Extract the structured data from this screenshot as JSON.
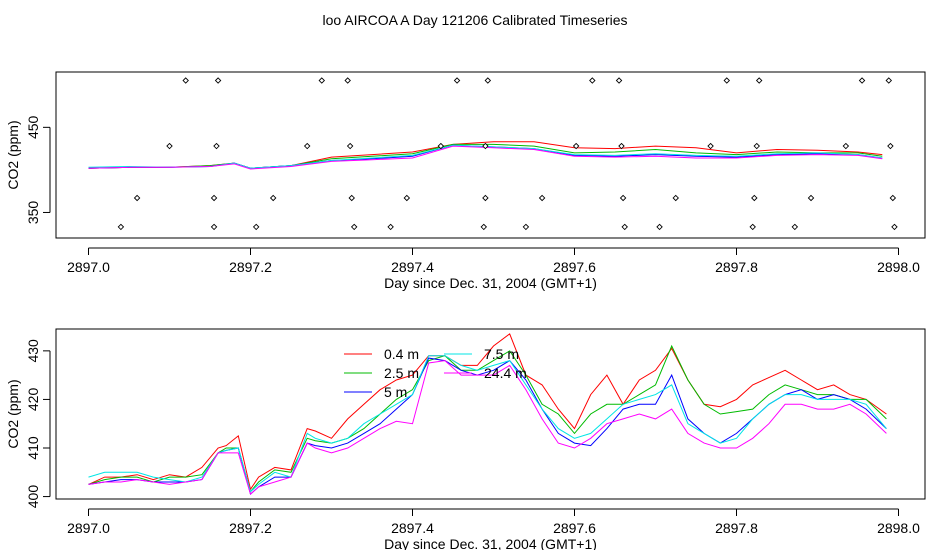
{
  "page": {
    "title": "loo AIRCOA A  Day 121206  Calibrated Timeseries"
  },
  "colors": {
    "s1": "#ff0000",
    "s2": "#00bb00",
    "s3": "#0000ff",
    "s4": "#00e5e5",
    "s5": "#ff00ff"
  },
  "chart_data": [
    {
      "type": "scatter",
      "xlabel": "Day since Dec. 31, 2004 (GMT+1)",
      "ylabel": "CO2 (ppm)",
      "xlim": [
        2897.0,
        2898.0
      ],
      "ylim": [
        320,
        515
      ],
      "x_ticks": [
        2897.0,
        2897.2,
        2897.4,
        2897.6,
        2897.8,
        2898.0
      ],
      "x_tick_labels": [
        "2897.0",
        "2897.2",
        "2897.4",
        "2897.6",
        "2897.8",
        "2898.0"
      ],
      "y_ticks": [
        350,
        450
      ],
      "y_tick_labels": [
        "350",
        "450"
      ],
      "marker_points": [
        {
          "x": 2897.04,
          "y": 333
        },
        {
          "x": 2897.06,
          "y": 367
        },
        {
          "x": 2897.1,
          "y": 428
        },
        {
          "x": 2897.12,
          "y": 505
        },
        {
          "x": 2897.155,
          "y": 333
        },
        {
          "x": 2897.155,
          "y": 367
        },
        {
          "x": 2897.158,
          "y": 428
        },
        {
          "x": 2897.16,
          "y": 505
        },
        {
          "x": 2897.207,
          "y": 333
        },
        {
          "x": 2897.228,
          "y": 367
        },
        {
          "x": 2897.27,
          "y": 428
        },
        {
          "x": 2897.288,
          "y": 505
        },
        {
          "x": 2897.32,
          "y": 505
        },
        {
          "x": 2897.323,
          "y": 428
        },
        {
          "x": 2897.325,
          "y": 367
        },
        {
          "x": 2897.328,
          "y": 333
        },
        {
          "x": 2897.373,
          "y": 333
        },
        {
          "x": 2897.393,
          "y": 367
        },
        {
          "x": 2897.435,
          "y": 428
        },
        {
          "x": 2897.455,
          "y": 505
        },
        {
          "x": 2897.488,
          "y": 333
        },
        {
          "x": 2897.49,
          "y": 367
        },
        {
          "x": 2897.49,
          "y": 428
        },
        {
          "x": 2897.493,
          "y": 505
        },
        {
          "x": 2897.54,
          "y": 333
        },
        {
          "x": 2897.56,
          "y": 367
        },
        {
          "x": 2897.602,
          "y": 428
        },
        {
          "x": 2897.622,
          "y": 505
        },
        {
          "x": 2897.655,
          "y": 505
        },
        {
          "x": 2897.658,
          "y": 428
        },
        {
          "x": 2897.66,
          "y": 367
        },
        {
          "x": 2897.662,
          "y": 333
        },
        {
          "x": 2897.705,
          "y": 333
        },
        {
          "x": 2897.725,
          "y": 367
        },
        {
          "x": 2897.768,
          "y": 428
        },
        {
          "x": 2897.788,
          "y": 505
        },
        {
          "x": 2897.82,
          "y": 333
        },
        {
          "x": 2897.822,
          "y": 367
        },
        {
          "x": 2897.825,
          "y": 428
        },
        {
          "x": 2897.828,
          "y": 505
        },
        {
          "x": 2897.872,
          "y": 333
        },
        {
          "x": 2897.892,
          "y": 367
        },
        {
          "x": 2897.935,
          "y": 428
        },
        {
          "x": 2897.955,
          "y": 505
        },
        {
          "x": 2897.988,
          "y": 505
        },
        {
          "x": 2897.99,
          "y": 428
        },
        {
          "x": 2897.993,
          "y": 367
        },
        {
          "x": 2897.995,
          "y": 333
        }
      ],
      "x": [
        2897.0,
        2897.05,
        2897.1,
        2897.15,
        2897.18,
        2897.2,
        2897.25,
        2897.3,
        2897.35,
        2897.4,
        2897.45,
        2897.5,
        2897.55,
        2897.6,
        2897.65,
        2897.7,
        2897.75,
        2897.8,
        2897.85,
        2897.9,
        2897.95,
        2897.98
      ],
      "series": [
        {
          "values": [
            402,
            403,
            403,
            405,
            408,
            402,
            405,
            415,
            418,
            421,
            430,
            433,
            433,
            426,
            425,
            428,
            426,
            420,
            424,
            423,
            421,
            418
          ]
        },
        {
          "values": [
            402,
            403,
            403,
            405,
            408,
            402,
            405,
            413,
            416,
            419,
            430,
            430,
            428,
            420,
            421,
            424,
            420,
            418,
            421,
            420,
            420,
            416
          ]
        },
        {
          "values": [
            402,
            403,
            403,
            404,
            408,
            402,
            405,
            411,
            413,
            416,
            429,
            427,
            425,
            417,
            416,
            418,
            416,
            415,
            418,
            419,
            418,
            414
          ]
        },
        {
          "values": [
            403,
            404,
            403,
            404,
            408,
            402,
            405,
            411,
            414,
            417,
            429,
            427,
            425,
            418,
            417,
            419,
            417,
            416,
            419,
            420,
            418,
            414
          ]
        },
        {
          "values": [
            402,
            403,
            403,
            404,
            407,
            401,
            404,
            410,
            412,
            414,
            428,
            426,
            424,
            416,
            415,
            416,
            414,
            414,
            417,
            418,
            417,
            413
          ]
        }
      ]
    },
    {
      "type": "line",
      "xlabel": "Day since Dec. 31, 2004 (GMT+1)",
      "ylabel": "CO2 (ppm)",
      "xlim": [
        2897.0,
        2898.0
      ],
      "ylim": [
        399.5,
        434.5
      ],
      "x_ticks": [
        2897.0,
        2897.2,
        2897.4,
        2897.6,
        2897.8,
        2898.0
      ],
      "x_tick_labels": [
        "2897.0",
        "2897.2",
        "2897.4",
        "2897.6",
        "2897.8",
        "2898.0"
      ],
      "y_ticks": [
        400,
        410,
        420,
        430
      ],
      "y_tick_labels": [
        "400",
        "410",
        "420",
        "430"
      ],
      "x": [
        2897.0,
        2897.02,
        2897.04,
        2897.06,
        2897.08,
        2897.1,
        2897.12,
        2897.14,
        2897.16,
        2897.17,
        2897.185,
        2897.2,
        2897.21,
        2897.23,
        2897.25,
        2897.27,
        2897.28,
        2897.3,
        2897.32,
        2897.34,
        2897.36,
        2897.38,
        2897.4,
        2897.42,
        2897.44,
        2897.46,
        2897.48,
        2897.5,
        2897.52,
        2897.54,
        2897.56,
        2897.58,
        2897.6,
        2897.62,
        2897.64,
        2897.66,
        2897.68,
        2897.7,
        2897.72,
        2897.74,
        2897.76,
        2897.78,
        2897.8,
        2897.82,
        2897.84,
        2897.86,
        2897.88,
        2897.9,
        2897.92,
        2897.94,
        2897.96,
        2897.985
      ],
      "series": [
        {
          "name": "0.4 m",
          "values": [
            402.5,
            404,
            404,
            404.5,
            403.5,
            404.5,
            404,
            406,
            410,
            410.5,
            412.5,
            401.5,
            404,
            406,
            405.5,
            414,
            413.5,
            412,
            416,
            419,
            422,
            424,
            425,
            429,
            429,
            427,
            427,
            431,
            433.5,
            425,
            423,
            418,
            414,
            421,
            425,
            419,
            424,
            426,
            430.5,
            424,
            419,
            418.5,
            420,
            423,
            424.5,
            426,
            424,
            422,
            423,
            421,
            420,
            417
          ]
        },
        {
          "name": "2.5 m",
          "values": [
            402.5,
            403.5,
            404,
            404,
            403,
            404,
            404,
            404.5,
            409,
            410,
            410,
            401,
            403,
            405.5,
            405,
            412,
            411.5,
            411,
            412,
            414,
            417,
            420,
            422,
            428,
            429,
            426,
            426,
            428,
            430,
            425,
            419,
            417,
            413,
            417,
            419,
            419,
            421,
            423,
            431,
            424,
            419,
            417,
            417.5,
            418,
            421,
            423,
            422,
            421,
            421,
            420,
            420,
            416
          ]
        },
        {
          "name": "5 m",
          "values": [
            402.5,
            403,
            403.5,
            403.5,
            403,
            403,
            403,
            403.5,
            409,
            409.5,
            410,
            400.5,
            402,
            404,
            404,
            411,
            410.5,
            410,
            411,
            413,
            415,
            418,
            421,
            428.5,
            428,
            426,
            425,
            426,
            428,
            424,
            418,
            413,
            411,
            410.5,
            414,
            418,
            419,
            419,
            425,
            416,
            413,
            411,
            413,
            416,
            419,
            421,
            422,
            420,
            421,
            420,
            418,
            414
          ]
        },
        {
          "name": "7.5 m",
          "values": [
            404,
            405,
            405,
            405,
            404,
            403.5,
            403,
            404,
            409,
            409.5,
            410,
            401,
            402.5,
            405,
            404,
            413,
            412,
            411,
            412,
            415,
            417,
            419,
            421,
            429,
            429,
            427,
            426,
            427,
            428,
            423,
            418,
            414,
            412,
            413,
            416,
            419,
            420,
            421,
            423,
            415,
            413,
            411,
            412,
            416,
            419,
            421,
            421,
            420,
            420,
            420,
            419,
            414
          ]
        },
        {
          "name": "24.4 m",
          "values": [
            402.5,
            403,
            403,
            403.5,
            403,
            402.5,
            403,
            403.5,
            409,
            409,
            409,
            400.5,
            402,
            403,
            404,
            411,
            410,
            409,
            410,
            412,
            414,
            415.5,
            415,
            427.5,
            428,
            425,
            425,
            425,
            427,
            422,
            416,
            411,
            410,
            412,
            415,
            416,
            417,
            416,
            418,
            413,
            411,
            410,
            410,
            412,
            415,
            419,
            419,
            418,
            418,
            419,
            417,
            413
          ]
        }
      ]
    }
  ]
}
